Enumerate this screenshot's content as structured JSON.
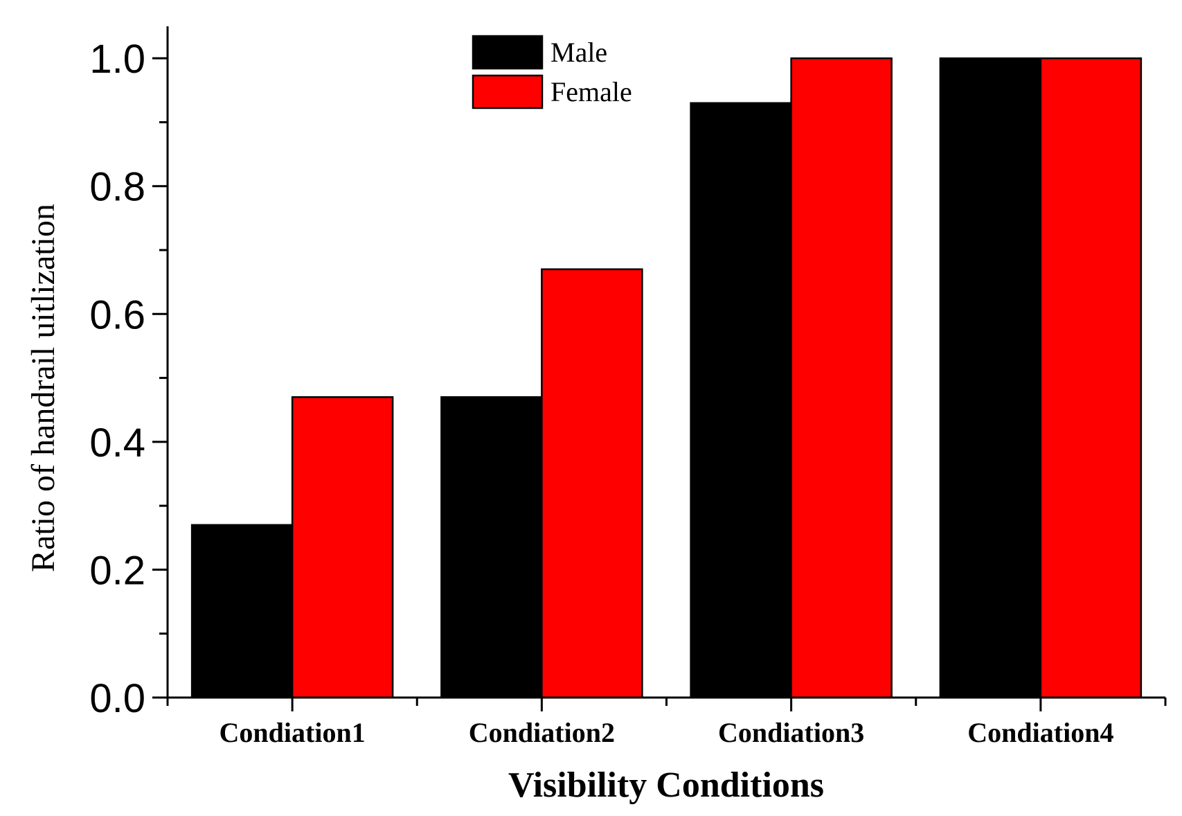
{
  "chart_data": {
    "type": "bar",
    "categories": [
      "Condiation1",
      "Condiation2",
      "Condiation3",
      "Condiation4"
    ],
    "series": [
      {
        "name": "Male",
        "color": "#000000",
        "values": [
          0.27,
          0.47,
          0.93,
          1.0
        ]
      },
      {
        "name": "Female",
        "color": "#ff0000",
        "values": [
          0.47,
          0.67,
          1.0,
          1.0
        ]
      }
    ],
    "xlabel": "Visibility Conditions",
    "ylabel": "Ratio of handrail uitlization",
    "ylim": [
      0,
      1.05
    ],
    "yticks": [
      "0.0",
      "0.2",
      "0.4",
      "0.6",
      "0.8",
      "1.0"
    ],
    "grid": false,
    "legend": {
      "position": "top-center"
    }
  }
}
